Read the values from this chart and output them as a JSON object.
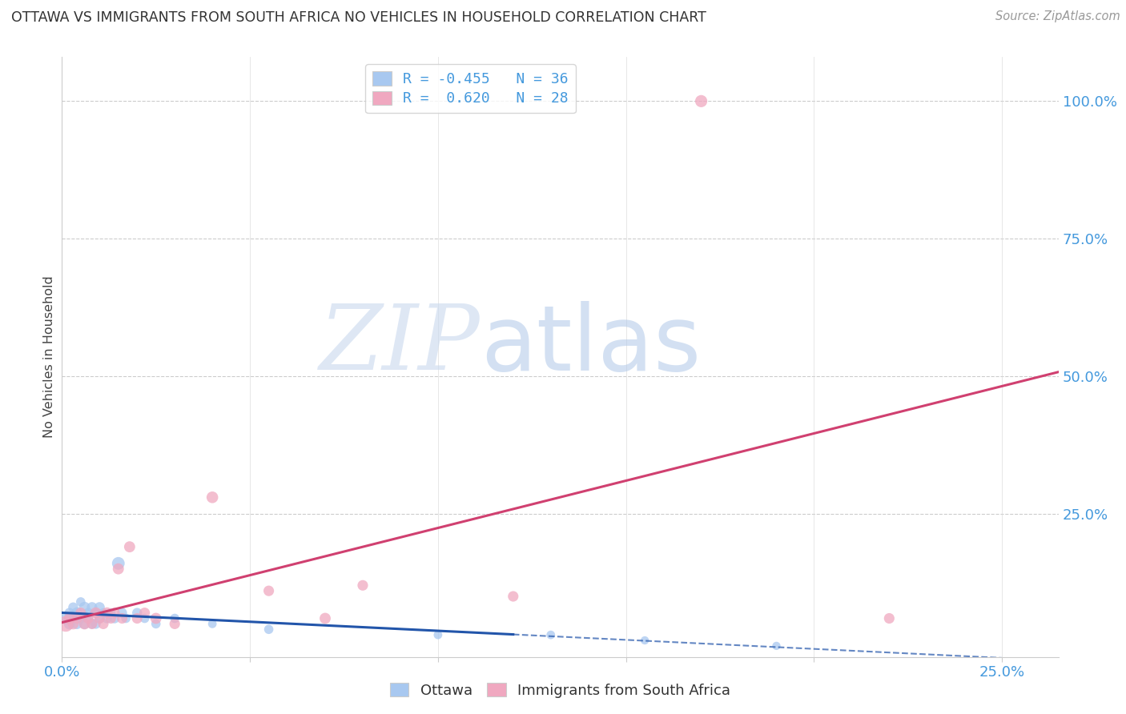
{
  "title": "OTTAWA VS IMMIGRANTS FROM SOUTH AFRICA NO VEHICLES IN HOUSEHOLD CORRELATION CHART",
  "source": "Source: ZipAtlas.com",
  "ylabel": "No Vehicles in Household",
  "xlim": [
    0.0,
    0.265
  ],
  "ylim": [
    -0.01,
    1.08
  ],
  "watermark_zip": "ZIP",
  "watermark_atlas": "atlas",
  "legend_r_ottawa": "-0.455",
  "legend_n_ottawa": "36",
  "legend_r_sa": "0.620",
  "legend_n_sa": "28",
  "ottawa_color": "#a8c8f0",
  "sa_color": "#f0a8c0",
  "ottawa_line_color": "#2255aa",
  "sa_line_color": "#d04070",
  "background_color": "#ffffff",
  "grid_color": "#cccccc",
  "ottawa_x": [
    0.001,
    0.002,
    0.002,
    0.003,
    0.003,
    0.004,
    0.004,
    0.005,
    0.005,
    0.006,
    0.006,
    0.007,
    0.007,
    0.008,
    0.008,
    0.009,
    0.009,
    0.01,
    0.01,
    0.011,
    0.012,
    0.013,
    0.014,
    0.015,
    0.016,
    0.017,
    0.02,
    0.022,
    0.025,
    0.03,
    0.04,
    0.055,
    0.1,
    0.13,
    0.155,
    0.19
  ],
  "ottawa_y": [
    0.06,
    0.07,
    0.05,
    0.08,
    0.06,
    0.07,
    0.05,
    0.09,
    0.06,
    0.08,
    0.05,
    0.07,
    0.06,
    0.08,
    0.05,
    0.07,
    0.05,
    0.08,
    0.06,
    0.07,
    0.06,
    0.07,
    0.06,
    0.16,
    0.07,
    0.06,
    0.07,
    0.06,
    0.05,
    0.06,
    0.05,
    0.04,
    0.03,
    0.03,
    0.02,
    0.01
  ],
  "ottawa_size": [
    120,
    80,
    100,
    80,
    70,
    100,
    90,
    70,
    80,
    100,
    90,
    80,
    70,
    90,
    80,
    70,
    80,
    90,
    80,
    70,
    80,
    70,
    80,
    130,
    80,
    70,
    80,
    70,
    70,
    70,
    60,
    70,
    60,
    60,
    55,
    55
  ],
  "sa_x": [
    0.001,
    0.002,
    0.003,
    0.004,
    0.005,
    0.006,
    0.007,
    0.008,
    0.009,
    0.01,
    0.011,
    0.012,
    0.013,
    0.014,
    0.015,
    0.016,
    0.018,
    0.02,
    0.022,
    0.025,
    0.03,
    0.04,
    0.055,
    0.07,
    0.08,
    0.12,
    0.17,
    0.22
  ],
  "sa_y": [
    0.05,
    0.06,
    0.05,
    0.06,
    0.07,
    0.05,
    0.06,
    0.05,
    0.07,
    0.06,
    0.05,
    0.07,
    0.06,
    0.07,
    0.15,
    0.06,
    0.19,
    0.06,
    0.07,
    0.06,
    0.05,
    0.28,
    0.11,
    0.06,
    0.12,
    0.1,
    1.0,
    0.06
  ],
  "sa_size": [
    200,
    100,
    100,
    90,
    90,
    100,
    90,
    90,
    100,
    90,
    90,
    100,
    90,
    90,
    100,
    90,
    100,
    90,
    90,
    100,
    90,
    110,
    90,
    100,
    90,
    90,
    120,
    90
  ]
}
